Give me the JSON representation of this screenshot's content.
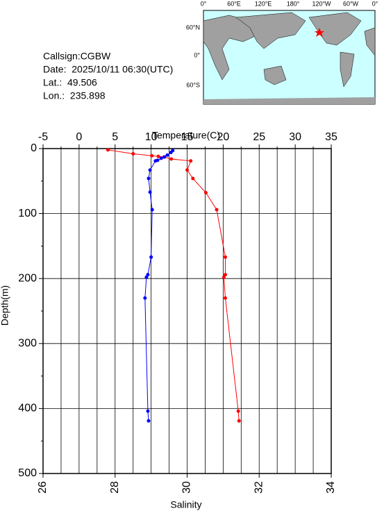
{
  "station": {
    "lines": [
      "Callsign:CGBW",
      "Date:  2025/10/11 06:30(UTC)",
      "Lat.:  49.506",
      "Lon.:  235.898"
    ]
  },
  "map": {
    "top_labels": [
      "0°",
      "60°E",
      "120°E",
      "180°",
      "120°W",
      "60°W",
      "0°"
    ],
    "left_labels": [
      "60°N",
      "0°",
      "60°S"
    ]
  },
  "chart_data": {
    "type": "line",
    "xlabel": "Temperature(C)",
    "x2label": "Salinity",
    "ylabel": "Depth(m)",
    "xlim": [
      -5,
      35
    ],
    "xticks": [
      -5,
      0,
      5,
      10,
      15,
      20,
      25,
      30,
      35
    ],
    "xgrid": [
      -2.5,
      2.5,
      7.5,
      12.5,
      17.5,
      22.5,
      27.5,
      32.5
    ],
    "x2lim": [
      26,
      34
    ],
    "x2ticks": [
      26,
      28,
      30,
      32,
      34
    ],
    "ylim": [
      0,
      500
    ],
    "yticks": [
      0,
      100,
      200,
      300,
      400,
      500
    ],
    "yminor": [
      50,
      150,
      250,
      350,
      450
    ],
    "grid": true,
    "series": [
      {
        "color": "#ff0000",
        "axis": "x",
        "depth": [
          2,
          8,
          11,
          12,
          13,
          16,
          19,
          33,
          46,
          68,
          94,
          167,
          194,
          198,
          230,
          404,
          419
        ],
        "values": [
          4.0,
          7.5,
          10.1,
          11.0,
          11.8,
          12.8,
          15.5,
          15.0,
          15.8,
          17.6,
          19.1,
          20.3,
          20.3,
          20.1,
          20.3,
          22.1,
          22.2
        ]
      },
      {
        "color": "#0000ff",
        "axis": "x2",
        "depth": [
          3,
          6,
          10,
          13,
          15,
          18,
          19,
          33,
          46,
          67,
          94,
          167,
          194,
          198,
          230,
          404,
          419
        ],
        "values": [
          29.6,
          29.55,
          29.45,
          29.37,
          29.28,
          29.18,
          29.12,
          28.97,
          28.93,
          28.97,
          29.03,
          29.0,
          28.91,
          28.87,
          28.83,
          28.91,
          28.93
        ]
      }
    ]
  }
}
